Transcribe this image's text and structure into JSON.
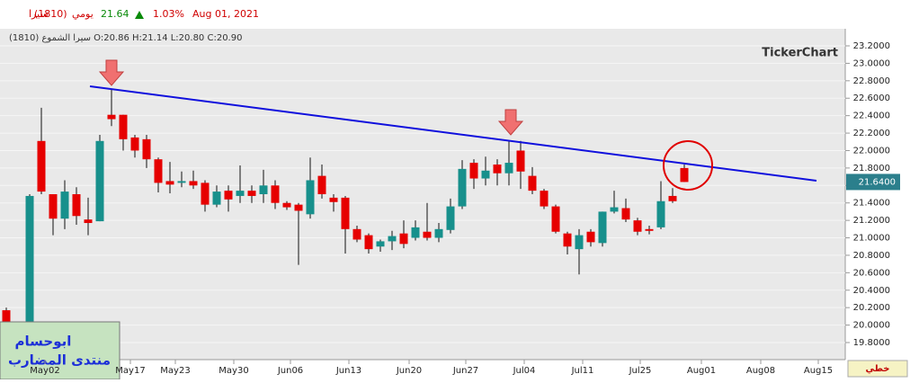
{
  "header": {
    "symbol": "سيرا",
    "code": "(1810)",
    "period": "يومي",
    "last": "21.64",
    "change": "1.03%",
    "date": "Aug 01, 2021",
    "info": "سيرا الشموع (1810) O:20.86 H:21.14 L:20.80 C:20.90"
  },
  "brand": "TickerChart",
  "watermark": [
    "ابوحسام",
    "منتدى المضارب"
  ],
  "bottom_button": "خطي",
  "chart_data": {
    "type": "candlestick",
    "up_color": "#17908c",
    "down_color": "#e60000",
    "open": [
      20.17,
      19.81,
      19.95,
      22.11,
      21.5,
      21.22,
      21.5,
      21.21,
      21.19,
      22.41,
      22.41,
      22.15,
      22.13,
      21.9,
      21.65,
      21.63,
      21.65,
      21.63,
      21.38,
      21.54,
      21.48,
      21.54,
      21.5,
      21.6,
      21.4,
      21.38,
      21.27,
      21.71,
      21.46,
      21.46,
      21.1,
      21.03,
      20.9,
      20.96,
      21.05,
      21.0,
      21.07,
      21.0,
      21.09,
      21.36,
      21.86,
      21.68,
      21.84,
      21.74,
      22.0,
      21.71,
      21.54,
      21.36,
      21.05,
      20.87,
      21.07,
      20.94,
      21.3,
      21.34,
      21.2,
      21.1,
      21.12,
      21.48,
      21.8
    ],
    "high": [
      20.2,
      19.95,
      21.5,
      22.49,
      21.5,
      21.66,
      21.58,
      21.46,
      22.18,
      22.7,
      22.41,
      22.18,
      22.18,
      21.92,
      21.87,
      21.76,
      21.77,
      21.66,
      21.6,
      21.6,
      21.83,
      21.6,
      21.78,
      21.66,
      21.42,
      21.4,
      21.92,
      21.84,
      21.5,
      21.48,
      21.14,
      21.05,
      20.98,
      21.08,
      21.2,
      21.2,
      21.4,
      21.17,
      21.45,
      21.89,
      21.9,
      21.93,
      21.9,
      22.11,
      22.11,
      21.81,
      21.56,
      21.38,
      21.07,
      21.1,
      21.1,
      21.3,
      21.54,
      21.45,
      21.23,
      21.14,
      21.65,
      21.57,
      21.84
    ],
    "low": [
      19.75,
      19.7,
      19.92,
      21.5,
      21.03,
      21.1,
      21.15,
      21.03,
      21.19,
      22.28,
      22.0,
      21.92,
      21.8,
      21.52,
      21.51,
      21.58,
      21.56,
      21.3,
      21.35,
      21.3,
      21.4,
      21.4,
      21.4,
      21.33,
      21.32,
      20.69,
      21.22,
      21.45,
      21.3,
      20.82,
      20.95,
      20.82,
      20.84,
      20.86,
      20.88,
      20.97,
      20.97,
      20.95,
      21.05,
      21.33,
      21.56,
      21.6,
      21.6,
      21.6,
      21.56,
      21.5,
      21.33,
      21.05,
      20.81,
      20.58,
      20.9,
      20.9,
      21.28,
      21.18,
      21.03,
      21.04,
      21.1,
      21.4,
      21.64
    ],
    "close": [
      19.78,
      19.93,
      21.48,
      21.53,
      21.22,
      21.53,
      21.25,
      21.17,
      22.11,
      22.36,
      22.13,
      22.0,
      21.9,
      21.63,
      21.61,
      21.65,
      21.6,
      21.38,
      21.53,
      21.44,
      21.54,
      21.48,
      21.6,
      21.4,
      21.35,
      21.31,
      21.66,
      21.5,
      21.41,
      21.1,
      20.98,
      20.87,
      20.96,
      21.02,
      20.93,
      21.12,
      21.0,
      21.1,
      21.36,
      21.79,
      21.68,
      21.77,
      21.74,
      21.86,
      21.76,
      21.54,
      21.36,
      21.07,
      20.9,
      21.03,
      20.95,
      21.3,
      21.35,
      21.21,
      21.07,
      21.08,
      21.42,
      21.42,
      21.64
    ],
    "x_labels": [
      "May02",
      "May17",
      "May23",
      "May30",
      "Jun06",
      "Jun13",
      "Jun20",
      "Jun27",
      "Jul04",
      "Jul11",
      "Jul25",
      "Aug01",
      "Aug08",
      "Aug15"
    ],
    "ylim": [
      19.6,
      23.4
    ],
    "yticks": [
      {
        "value": 19.8,
        "label": "19.8000"
      },
      {
        "value": 20.0,
        "label": "20.0000"
      },
      {
        "value": 20.2,
        "label": "20.2000"
      },
      {
        "value": 20.4,
        "label": "20.4000"
      },
      {
        "value": 20.6,
        "label": "20.6000"
      },
      {
        "value": 20.8,
        "label": "20.8000"
      },
      {
        "value": 21.0,
        "label": "21.0000"
      },
      {
        "value": 21.2,
        "label": "21.2000"
      },
      {
        "value": 21.4,
        "label": "21.4000"
      },
      {
        "value": 21.6,
        "label": "21.6000"
      },
      {
        "value": 21.8,
        "label": "21.8000"
      },
      {
        "value": 22.0,
        "label": "22.0000"
      },
      {
        "value": 22.2,
        "label": "22.2000"
      },
      {
        "value": 22.4,
        "label": "22.4000"
      },
      {
        "value": 22.6,
        "label": "22.6000"
      },
      {
        "value": 22.8,
        "label": "22.8000"
      },
      {
        "value": 23.0,
        "label": "23.0000"
      },
      {
        "value": 23.2,
        "label": "23.2000"
      }
    ],
    "last_price": {
      "value": 21.64,
      "label": "21.6400"
    },
    "grid": true
  }
}
